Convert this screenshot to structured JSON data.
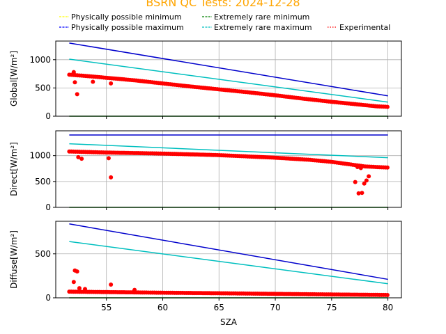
{
  "chart_data": {
    "type": "scatter",
    "title": "BSRN QC Tests: 2024-12-28",
    "xlabel": "SZA",
    "xlim": [
      50.5,
      81.2
    ],
    "x_ticks": [
      55,
      60,
      65,
      70,
      75,
      80
    ],
    "grid": true,
    "legend": {
      "placement": "top",
      "entries": [
        {
          "name": "Physically possible minimum",
          "color": "#ffff00",
          "style": "dashed"
        },
        {
          "name": "Physically possible maximum",
          "color": "#0000ff",
          "style": "dashed"
        },
        {
          "name": "Extremely rare minimum",
          "color": "#008000",
          "style": "dashed"
        },
        {
          "name": "Extremely rare maximum",
          "color": "#00bfbf",
          "style": "dashed"
        },
        {
          "name": "Experimental",
          "color": "#ff0000",
          "style": "dotted"
        }
      ]
    },
    "panels": [
      {
        "ylabel": "Global[W/m²]",
        "ylim": [
          0,
          1330
        ],
        "y_ticks": [
          0,
          500,
          1000
        ],
        "lines": [
          {
            "name": "Physically possible maximum",
            "color": "#0000cc",
            "x": [
              51.7,
              80
            ],
            "y": [
              1295,
              360
            ]
          },
          {
            "name": "Extremely rare maximum",
            "color": "#00bfbf",
            "x": [
              51.7,
              80
            ],
            "y": [
              1010,
              250
            ]
          },
          {
            "name": "Extremely rare minimum",
            "color": "#008000",
            "x": [
              51.7,
              80
            ],
            "y": [
              0,
              0
            ]
          }
        ],
        "points": {
          "x": [
            51.7,
            53,
            55,
            57.5,
            60,
            62.5,
            65,
            67.5,
            70,
            72.5,
            75,
            77.5,
            79,
            80
          ],
          "y": [
            735,
            715,
            680,
            635,
            580,
            525,
            475,
            425,
            370,
            310,
            255,
            205,
            175,
            165
          ]
        },
        "outliers": {
          "x": [
            52.1,
            52.2,
            52.4,
            53.8,
            55.4
          ],
          "y": [
            780,
            600,
            390,
            610,
            580
          ]
        }
      },
      {
        "ylabel": "Direct[W/m²]",
        "ylim": [
          0,
          1480
        ],
        "y_ticks": [
          0,
          500,
          1000
        ],
        "lines": [
          {
            "name": "Physically possible maximum",
            "color": "#0000cc",
            "x": [
              51.7,
              80
            ],
            "y": [
              1400,
              1400
            ]
          },
          {
            "name": "Extremely rare maximum",
            "color": "#00bfbf",
            "x": [
              51.7,
              80
            ],
            "y": [
              1230,
              960
            ]
          },
          {
            "name": "Extremely rare minimum",
            "color": "#008000",
            "x": [
              51.7,
              80
            ],
            "y": [
              0,
              0
            ]
          }
        ],
        "points": {
          "x": [
            51.7,
            55,
            60,
            65,
            70,
            73,
            75,
            77,
            78,
            80
          ],
          "y": [
            1080,
            1060,
            1040,
            1010,
            960,
            920,
            880,
            820,
            790,
            770
          ]
        },
        "outliers": {
          "x": [
            52.5,
            52.8,
            55.2,
            55.4,
            77.1,
            77.4,
            77.7,
            77.9,
            78.1,
            78.3,
            77.3,
            77.6
          ],
          "y": [
            970,
            940,
            950,
            580,
            490,
            270,
            280,
            460,
            520,
            600,
            780,
            760
          ]
        }
      },
      {
        "ylabel": "Diffuse[W/m²]",
        "ylim": [
          0,
          870
        ],
        "y_ticks": [
          0,
          500
        ],
        "lines": [
          {
            "name": "Physically possible maximum",
            "color": "#0000cc",
            "x": [
              51.7,
              80
            ],
            "y": [
              840,
              210
            ]
          },
          {
            "name": "Extremely rare maximum",
            "color": "#00bfbf",
            "x": [
              51.7,
              80
            ],
            "y": [
              640,
              160
            ]
          },
          {
            "name": "Extremely rare minimum",
            "color": "#008000",
            "x": [
              51.7,
              80
            ],
            "y": [
              0,
              0
            ]
          }
        ],
        "points": {
          "x": [
            51.7,
            55,
            60,
            65,
            70,
            75,
            80
          ],
          "y": [
            70,
            65,
            58,
            52,
            45,
            38,
            32
          ]
        },
        "outliers": {
          "x": [
            52.2,
            52.4,
            52.1,
            52.6,
            53.1,
            55.4,
            57.5
          ],
          "y": [
            310,
            300,
            180,
            110,
            100,
            150,
            90
          ]
        }
      }
    ]
  }
}
